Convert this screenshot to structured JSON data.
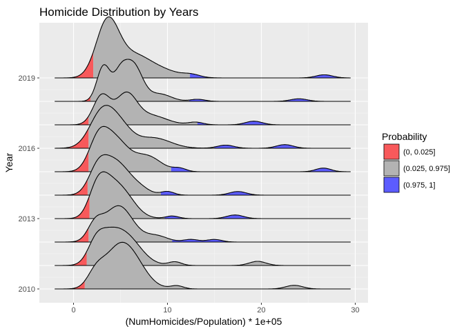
{
  "chart_data": {
    "type": "ridgeline",
    "title": "Homicide Distribution by Years",
    "xlabel": "(NumHomicides/Population) * 1e+05",
    "ylabel": "Year",
    "xlim": [
      -2,
      30
    ],
    "x_ticks": [
      0,
      10,
      20,
      30
    ],
    "x_tick_labels": [
      "0",
      "10",
      "20",
      "30"
    ],
    "years": [
      2010,
      2011,
      2012,
      2013,
      2014,
      2015,
      2016,
      2017,
      2018,
      2019
    ],
    "y_tick_labels": [
      "2010",
      "2013",
      "2016",
      "2019"
    ],
    "y_tick_years": [
      2010,
      2013,
      2016,
      2019
    ],
    "grid": true,
    "legend": {
      "title": "Probability",
      "placement": "right",
      "entries": [
        {
          "label": "(0, 0.025]",
          "color": "#f8595b"
        },
        {
          "label": "(0.025, 0.975]",
          "color": "#b3b3b3"
        },
        {
          "label": "(0.975, 1]",
          "color": "#5c5cff"
        }
      ]
    },
    "series": [
      {
        "year": 2010,
        "x_min": -2,
        "x_max": 29.5,
        "q_low": 1.2,
        "q_high": 29.5,
        "peaks": [
          [
            2.4,
            0.3,
            0.9
          ],
          [
            5.6,
            0.78,
            1.7
          ],
          [
            4.2,
            0.2,
            1.2
          ],
          [
            11.0,
            0.06,
            0.7
          ],
          [
            23.5,
            0.07,
            0.9
          ]
        ]
      },
      {
        "year": 2011,
        "x_min": -2,
        "x_max": 29.5,
        "q_low": 1.4,
        "q_high": 29.5,
        "peaks": [
          [
            2.4,
            0.4,
            0.9
          ],
          [
            5.3,
            0.62,
            1.7
          ],
          [
            3.8,
            0.2,
            1.0
          ],
          [
            10.8,
            0.07,
            0.7
          ],
          [
            19.6,
            0.08,
            0.9
          ]
        ]
      },
      {
        "year": 2012,
        "x_min": -2,
        "x_max": 29.5,
        "q_low": 1.6,
        "q_high": 10.5,
        "peaks": [
          [
            2.3,
            0.3,
            0.8
          ],
          [
            4.8,
            0.7,
            1.5
          ],
          [
            8.8,
            0.12,
            1.2
          ],
          [
            12.5,
            0.05,
            0.8
          ],
          [
            15.0,
            0.05,
            0.8
          ]
        ]
      },
      {
        "year": 2013,
        "x_min": -2,
        "x_max": 29.5,
        "q_low": 1.7,
        "q_high": 9.7,
        "peaks": [
          [
            2.5,
            0.52,
            0.9
          ],
          [
            4.8,
            0.6,
            1.5
          ],
          [
            3.6,
            0.2,
            0.9
          ],
          [
            10.5,
            0.05,
            0.7
          ],
          [
            17.2,
            0.07,
            0.9
          ]
        ]
      },
      {
        "year": 2014,
        "x_min": -2,
        "x_max": 29.5,
        "q_low": 1.5,
        "q_high": 9.3,
        "peaks": [
          [
            2.6,
            0.45,
            1.0
          ],
          [
            4.5,
            0.62,
            1.4
          ],
          [
            7.0,
            0.12,
            1.1
          ],
          [
            10.0,
            0.07,
            0.7
          ],
          [
            17.5,
            0.07,
            0.9
          ]
        ]
      },
      {
        "year": 2015,
        "x_min": -2,
        "x_max": 29.5,
        "q_low": 1.6,
        "q_high": 10.4,
        "peaks": [
          [
            2.6,
            0.5,
            1.0
          ],
          [
            4.3,
            0.62,
            1.4
          ],
          [
            7.8,
            0.3,
            1.5
          ],
          [
            11.3,
            0.06,
            0.7
          ],
          [
            26.6,
            0.07,
            0.8
          ]
        ]
      },
      {
        "year": 2016,
        "x_min": -2,
        "x_max": 29.5,
        "q_low": 1.6,
        "q_high": 15.0,
        "peaks": [
          [
            3.0,
            0.66,
            1.3
          ],
          [
            4.9,
            0.38,
            1.3
          ],
          [
            8.5,
            0.2,
            1.8
          ],
          [
            16.2,
            0.06,
            0.9
          ],
          [
            22.5,
            0.07,
            0.9
          ]
        ]
      },
      {
        "year": 2017,
        "x_min": -2,
        "x_max": 29.5,
        "q_low": 1.6,
        "q_high": 13.2,
        "peaks": [
          [
            3.0,
            0.56,
            0.9
          ],
          [
            5.6,
            0.57,
            1.1
          ],
          [
            8.2,
            0.18,
            1.7
          ],
          [
            13.0,
            0.05,
            0.8
          ],
          [
            19.2,
            0.07,
            0.9
          ]
        ]
      },
      {
        "year": 2018,
        "x_min": -2,
        "x_max": 29.5,
        "q_low": 1.8,
        "q_high": 12.3,
        "peaks": [
          [
            3.2,
            0.68,
            0.7
          ],
          [
            6.3,
            0.72,
            1.0
          ],
          [
            4.9,
            0.4,
            0.7
          ],
          [
            9.2,
            0.14,
            1.2
          ],
          [
            13.2,
            0.04,
            0.8
          ],
          [
            24.0,
            0.05,
            0.9
          ]
        ]
      },
      {
        "year": 2019,
        "x_min": -2,
        "x_max": 29.5,
        "q_low": 2.1,
        "q_high": 12.4,
        "peaks": [
          [
            3.6,
            1.05,
            1.2
          ],
          [
            6.2,
            0.38,
            1.7
          ],
          [
            9.0,
            0.16,
            2.0
          ],
          [
            12.6,
            0.05,
            0.9
          ],
          [
            26.7,
            0.06,
            0.9
          ]
        ]
      }
    ]
  }
}
